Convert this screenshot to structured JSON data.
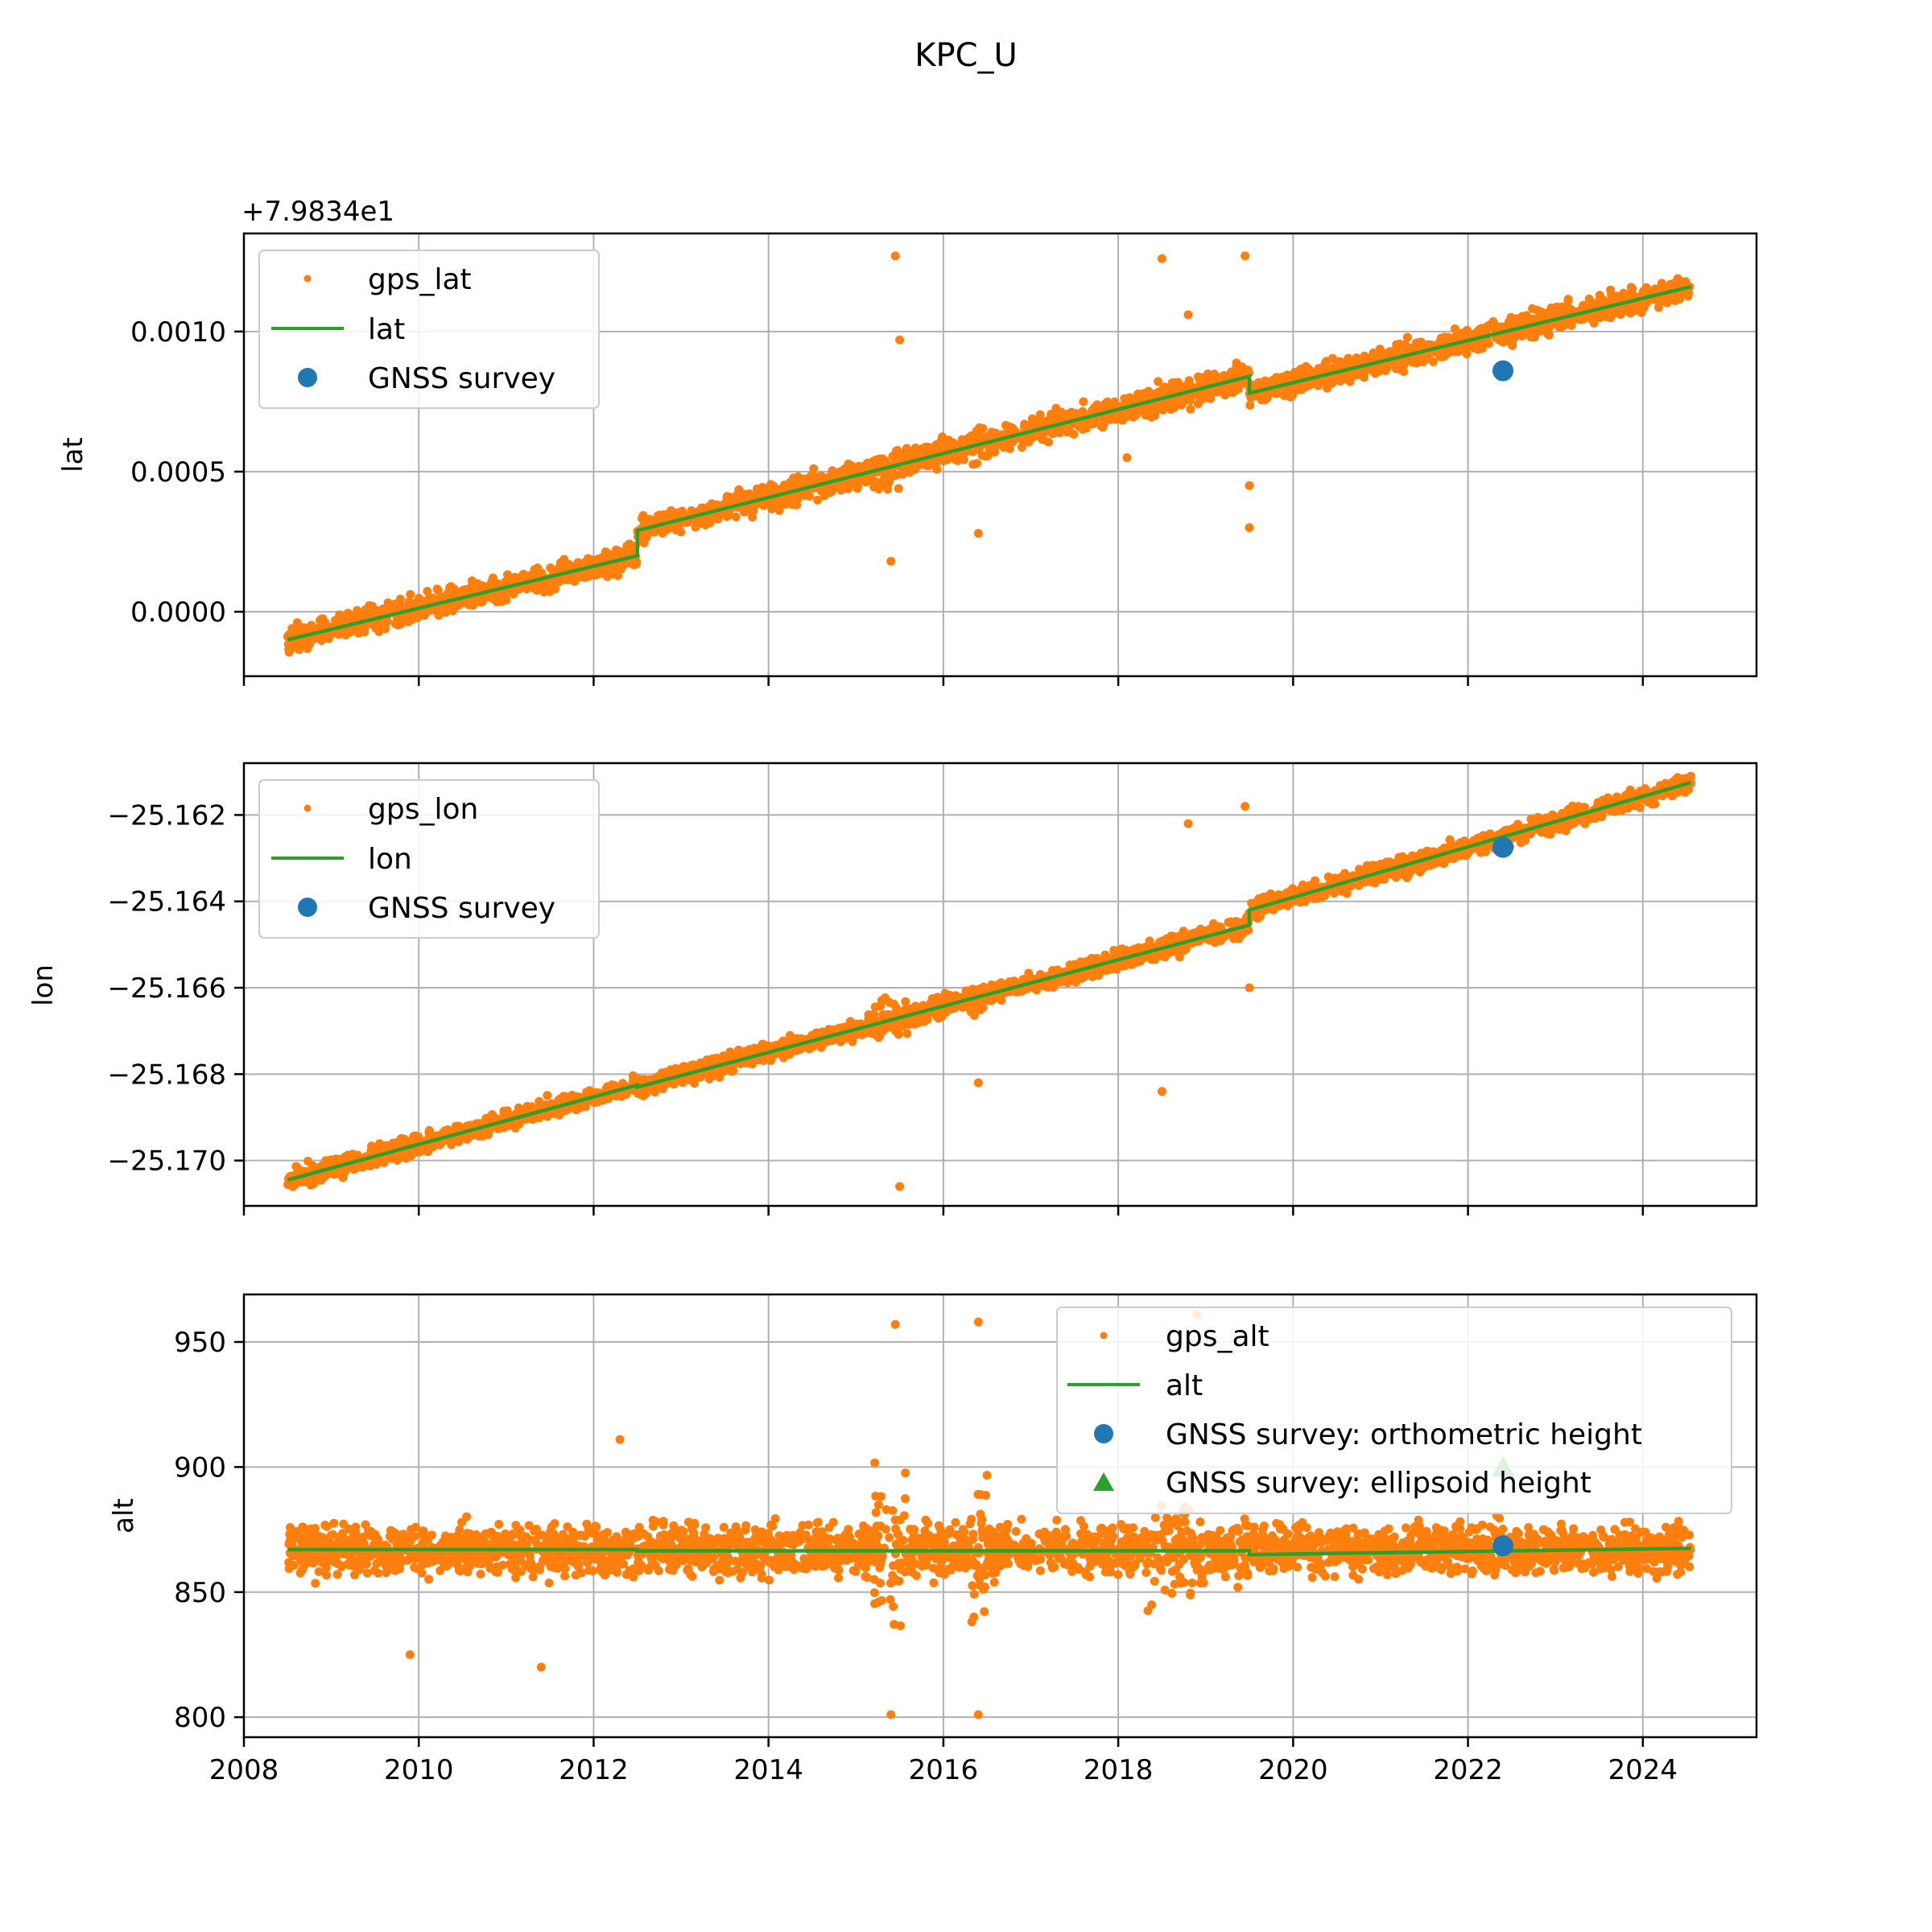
{
  "figure": {
    "title": "KPC_U"
  },
  "colors": {
    "gps": "#ff7f0e",
    "model": "#2ca02c",
    "survey": "#1f77b4",
    "grid": "#b0b0b0"
  },
  "chart_data": [
    {
      "type": "scatter",
      "ylabel": "lat",
      "offset_label": "+7.9834e1",
      "xlim": [
        2008.0,
        2025.3
      ],
      "ylim": [
        -0.00023,
        0.00135
      ],
      "x_ticks": [
        2008,
        2010,
        2012,
        2014,
        2016,
        2018,
        2020,
        2022,
        2024
      ],
      "y_ticks": [
        0.0,
        0.0005,
        0.001
      ],
      "y_tick_labels": [
        "0.0000",
        "0.0005",
        "0.0010"
      ],
      "grid": true,
      "legend_position": "upper-left",
      "legend": [
        "gps_lat",
        "lat",
        "GNSS survey"
      ],
      "series": [
        {
          "name": "gps_lat",
          "kind": "gps-scatter",
          "trend_segments": [
            [
              2008.5,
              2012.5,
              -0.0001,
              0.0002
            ],
            [
              2012.5,
              2019.5,
              0.00029,
              0.00084
            ],
            [
              2019.5,
              2024.55,
              0.00078,
              0.00116
            ]
          ],
          "spread": 3e-05,
          "noisy_windows": [
            [
              2015.2,
              2015.6,
              0.00012
            ],
            [
              2016.3,
              2016.5,
              0.0001
            ],
            [
              2018.3,
              2019.5,
              8e-05
            ]
          ],
          "outliers": [
            [
              2015.45,
              0.00127
            ],
            [
              2015.5,
              0.00097
            ],
            [
              2015.4,
              0.00018
            ],
            [
              2018.5,
              0.00126
            ],
            [
              2019.45,
              0.00127
            ],
            [
              2019.5,
              0.00045
            ],
            [
              2019.5,
              0.0003
            ],
            [
              2018.8,
              0.00106
            ],
            [
              2018.1,
              0.00055
            ],
            [
              2016.4,
              0.00028
            ]
          ]
        },
        {
          "name": "lat",
          "kind": "line",
          "points": [
            [
              2008.5,
              -0.0001
            ],
            [
              2012.5,
              0.0002
            ],
            [
              2012.5,
              0.00029
            ],
            [
              2019.5,
              0.00084
            ],
            [
              2019.5,
              0.00078
            ],
            [
              2024.55,
              0.00116
            ]
          ]
        },
        {
          "name": "GNSS survey",
          "kind": "survey",
          "points": [
            [
              2022.4,
              0.00086
            ]
          ]
        }
      ]
    },
    {
      "type": "scatter",
      "ylabel": "lon",
      "xlim": [
        2008.0,
        2025.3
      ],
      "ylim": [
        -25.17105,
        -25.1608
      ],
      "x_ticks": [
        2008,
        2010,
        2012,
        2014,
        2016,
        2018,
        2020,
        2022,
        2024
      ],
      "y_ticks": [
        -25.17,
        -25.168,
        -25.166,
        -25.164,
        -25.162
      ],
      "y_tick_labels": [
        "−25.170",
        "−25.168",
        "−25.166",
        "−25.164",
        "−25.162"
      ],
      "grid": true,
      "legend_position": "upper-left",
      "legend": [
        "gps_lon",
        "lon",
        "GNSS survey"
      ],
      "series": [
        {
          "name": "gps_lon",
          "kind": "gps-scatter",
          "trend_segments": [
            [
              2008.5,
              2012.5,
              -25.17045,
              -25.16825
            ],
            [
              2012.5,
              2019.5,
              -25.1683,
              -25.16455
            ],
            [
              2019.5,
              2024.55,
              -25.1642,
              -25.16125
            ]
          ],
          "spread": 0.00015,
          "noisy_windows": [
            [
              2015.2,
              2015.6,
              0.0006
            ],
            [
              2016.3,
              2016.5,
              0.0005
            ],
            [
              2018.3,
              2019.5,
              0.0004
            ]
          ],
          "outliers": [
            [
              2015.5,
              -25.1706
            ],
            [
              2018.8,
              -25.1622
            ],
            [
              2019.45,
              -25.1618
            ],
            [
              2018.5,
              -25.1684
            ],
            [
              2016.4,
              -25.1682
            ],
            [
              2019.5,
              -25.166
            ]
          ]
        },
        {
          "name": "lon",
          "kind": "line",
          "points": [
            [
              2008.5,
              -25.17045
            ],
            [
              2012.5,
              -25.16825
            ],
            [
              2012.5,
              -25.1683
            ],
            [
              2019.5,
              -25.16455
            ],
            [
              2019.5,
              -25.1642
            ],
            [
              2024.55,
              -25.16125
            ]
          ]
        },
        {
          "name": "GNSS survey",
          "kind": "survey",
          "points": [
            [
              2022.4,
              -25.16275
            ]
          ]
        }
      ]
    },
    {
      "type": "scatter",
      "ylabel": "alt",
      "xlim": [
        2008.0,
        2025.3
      ],
      "ylim": [
        792,
        969
      ],
      "x_ticks": [
        2008,
        2010,
        2012,
        2014,
        2016,
        2018,
        2020,
        2022,
        2024
      ],
      "x_tick_labels": [
        "2008",
        "2010",
        "2012",
        "2014",
        "2016",
        "2018",
        "2020",
        "2022",
        "2024"
      ],
      "y_ticks": [
        800,
        850,
        900,
        950
      ],
      "y_tick_labels": [
        "800",
        "850",
        "900",
        "950"
      ],
      "grid": true,
      "legend_position": "upper-right",
      "legend": [
        "gps_alt",
        "alt",
        "GNSS survey: orthometric height",
        "GNSS survey: ellipsoid height"
      ],
      "series": [
        {
          "name": "gps_alt",
          "kind": "gps-scatter",
          "trend_segments": [
            [
              2008.5,
              2024.55,
              867,
              867
            ]
          ],
          "spread": 7,
          "noisy_windows": [
            [
              2015.2,
              2015.6,
              40
            ],
            [
              2016.3,
              2016.5,
              40
            ],
            [
              2018.3,
              2019.0,
              25
            ],
            [
              2019.3,
              2019.5,
              20
            ]
          ],
          "outliers": [
            [
              2015.45,
              957
            ],
            [
              2016.4,
              958
            ],
            [
              2015.4,
              801
            ],
            [
              2016.4,
              801
            ],
            [
              2018.9,
              961
            ],
            [
              2012.3,
              911
            ],
            [
              2011.4,
              820
            ],
            [
              2009.9,
              825
            ]
          ]
        },
        {
          "name": "alt",
          "kind": "line",
          "points": [
            [
              2008.5,
              867
            ],
            [
              2012.5,
              867
            ],
            [
              2012.5,
              866.5
            ],
            [
              2019.5,
              866.5
            ],
            [
              2019.5,
              865
            ],
            [
              2024.55,
              867.5
            ]
          ]
        },
        {
          "name": "GNSS survey: orthometric height",
          "kind": "survey",
          "points": [
            [
              2022.4,
              868.5
            ]
          ]
        },
        {
          "name": "GNSS survey: ellipsoid height",
          "kind": "survey-triangle",
          "points": [
            [
              2022.4,
              900
            ]
          ]
        }
      ]
    }
  ]
}
